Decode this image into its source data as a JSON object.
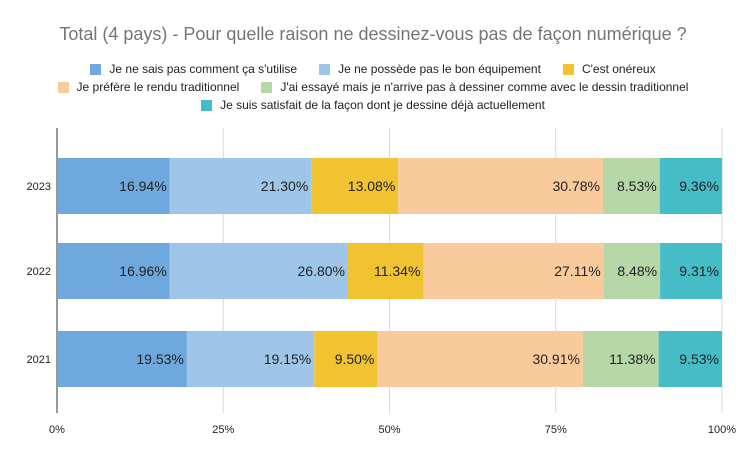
{
  "chart_data": {
    "type": "bar",
    "orientation": "horizontal",
    "stacked": "100%",
    "title": "Total (4 pays) - Pour quelle raison ne dessinez-vous pas de façon numérique ?",
    "categories": [
      "2023",
      "2022",
      "2021"
    ],
    "series": [
      {
        "name": "Je ne sais pas comment ça s'utilise",
        "color": "#6fa8dc",
        "values": [
          16.94,
          16.96,
          19.53
        ],
        "labels": [
          "16.94%",
          "16.96%",
          "19.53%"
        ]
      },
      {
        "name": "Je ne possède pas le bon équipement",
        "color": "#9fc5e8",
        "values": [
          21.3,
          26.8,
          19.15
        ],
        "labels": [
          "21.30%",
          "26.80%",
          "19.15%"
        ]
      },
      {
        "name": "C'est onéreux",
        "color": "#f1c232",
        "values": [
          13.08,
          11.34,
          9.5
        ],
        "labels": [
          "13.08%",
          "11.34%",
          "9.50%"
        ]
      },
      {
        "name": "Je préfère le rendu traditionnel",
        "color": "#f9cb9c",
        "values": [
          30.78,
          27.11,
          30.91
        ],
        "labels": [
          "30.78%",
          "27.11%",
          "30.91%"
        ]
      },
      {
        "name": "J'ai essayé mais je n'arrive pas à dessiner comme avec le dessin traditionnel",
        "color": "#b6d7a8",
        "values": [
          8.53,
          8.48,
          11.38
        ],
        "labels": [
          "8.53%",
          "8.48%",
          "11.38%"
        ]
      },
      {
        "name": "Je suis satisfait de la façon dont je dessine déjà actuellement",
        "color": "#46bdc6",
        "values": [
          9.36,
          9.31,
          9.53
        ],
        "labels": [
          "9.36%",
          "9.31%",
          "9.53%"
        ]
      }
    ],
    "xticks": [
      "0%",
      "25%",
      "50%",
      "75%",
      "100%"
    ],
    "xlim": [
      0,
      100
    ],
    "grid": true,
    "legend_position": "top"
  }
}
